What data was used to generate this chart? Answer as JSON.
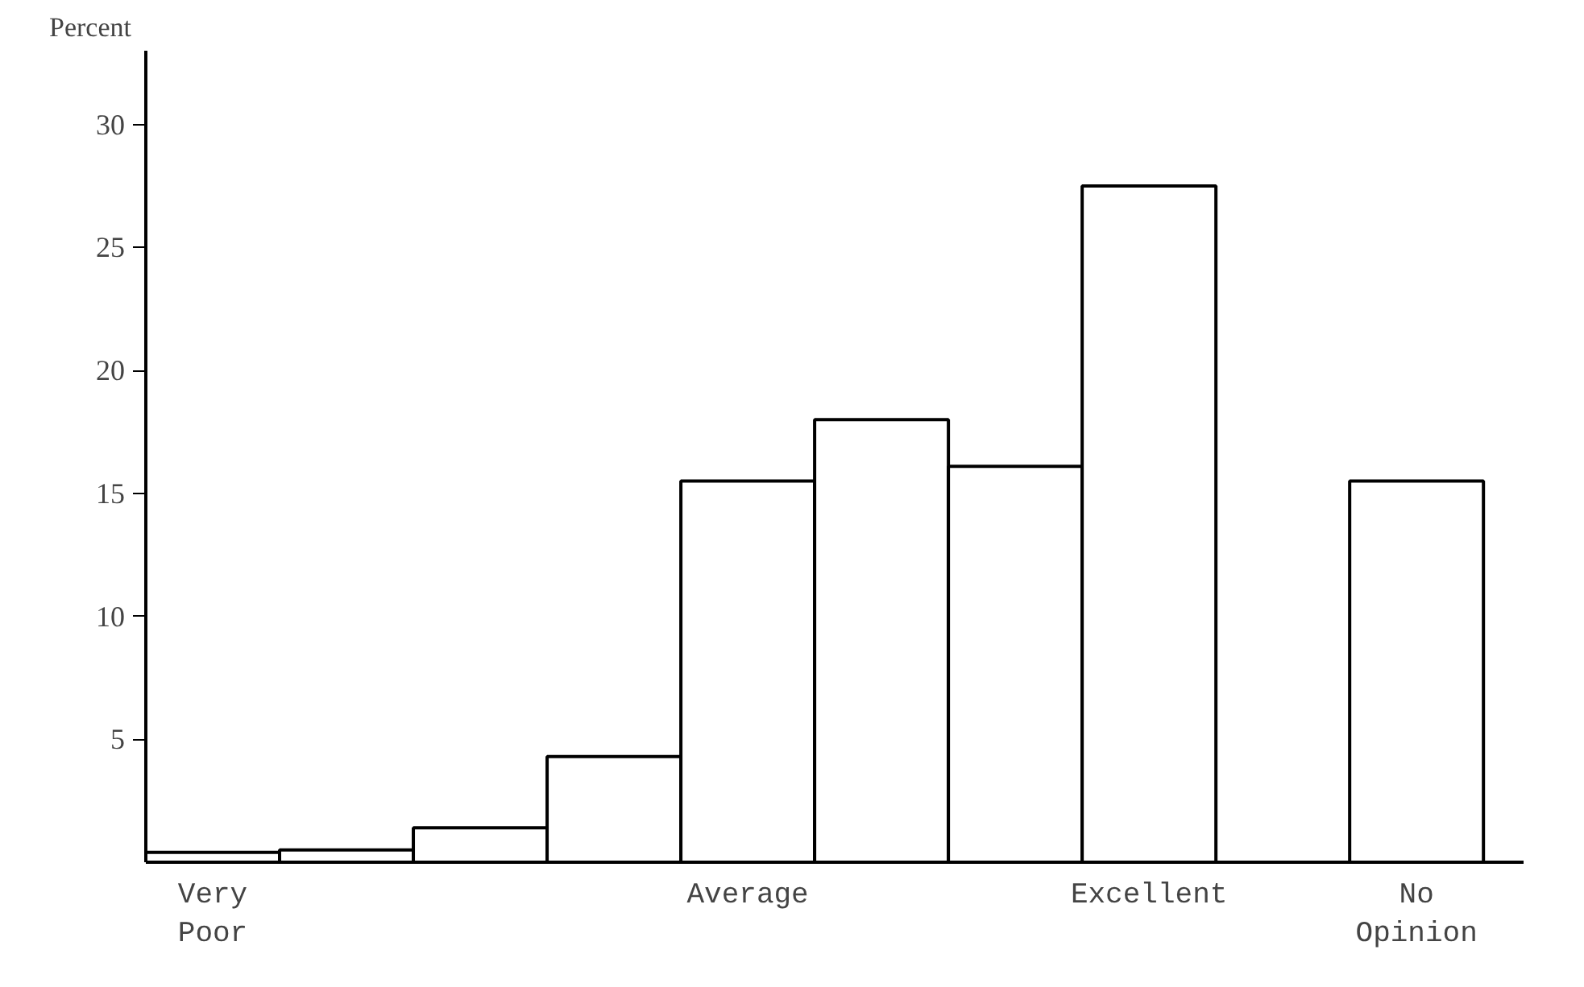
{
  "chart_data": {
    "type": "bar",
    "ylabel": "Percent",
    "categories": [
      "Very Poor",
      null,
      null,
      null,
      "Average",
      null,
      null,
      "Excellent",
      "No Opinion"
    ],
    "values": [
      0.4,
      0.5,
      1.4,
      4.3,
      15.5,
      18.0,
      16.1,
      27.5,
      15.5
    ],
    "color": "#ffffff",
    "ylim": [
      0,
      33
    ],
    "yticks": [
      5,
      10,
      15,
      20,
      25,
      30
    ],
    "grid": false
  }
}
